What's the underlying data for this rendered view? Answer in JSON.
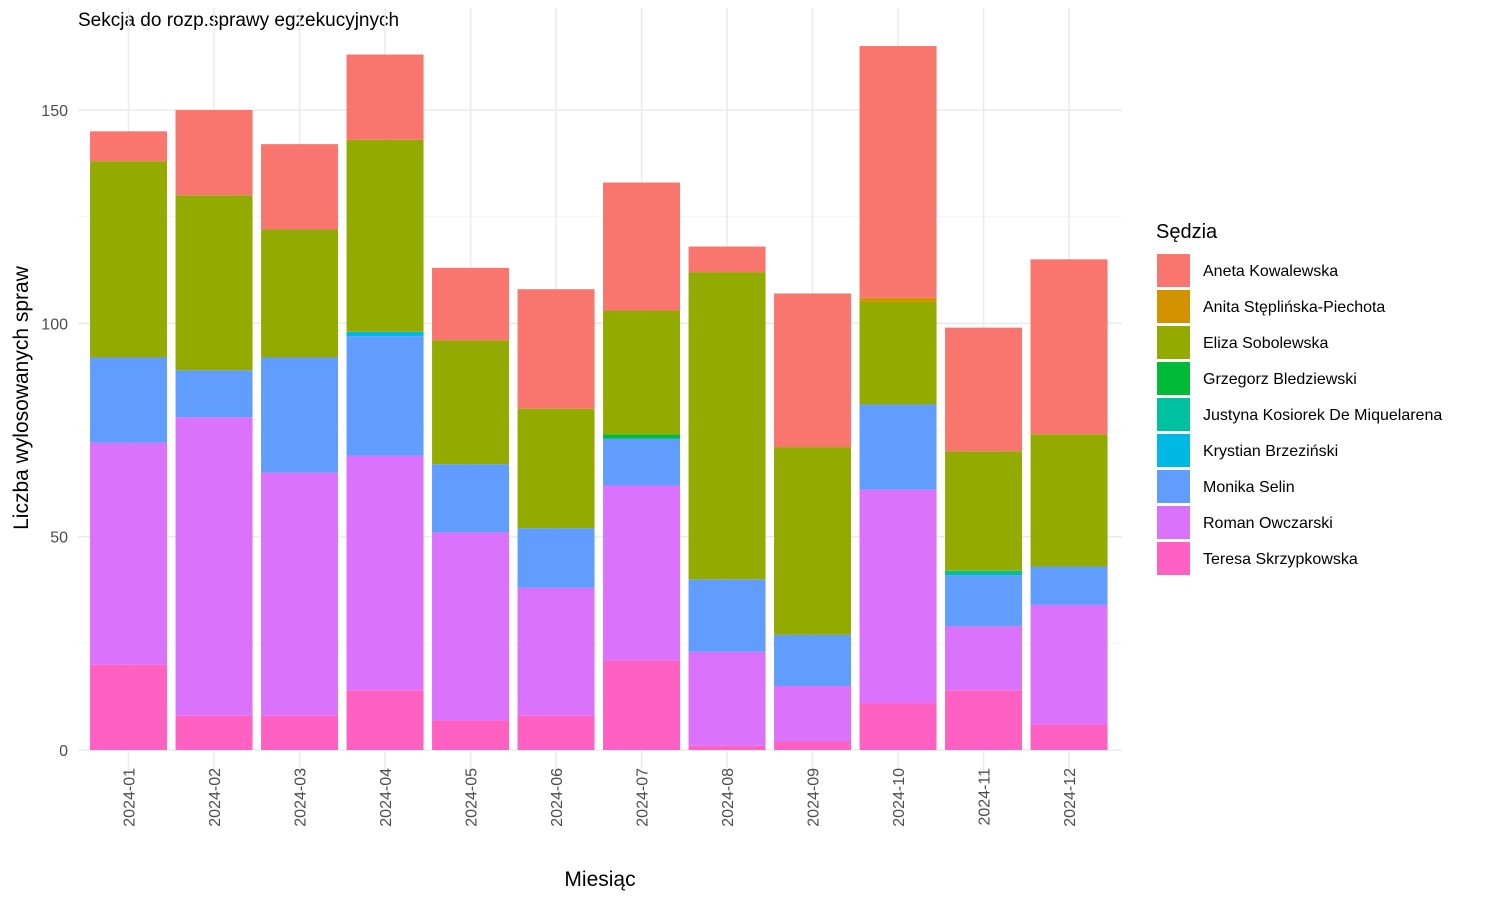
{
  "chart_data": {
    "type": "bar",
    "stacked": true,
    "title": "Sekcja do rozp.sprawy egzekucyjnych",
    "xlabel": "Miesiąc",
    "ylabel": "Liczba wylosowanych spraw",
    "ylim": [
      0,
      170
    ],
    "yticks": [
      0,
      50,
      100,
      150
    ],
    "grid": true,
    "legend_position": "right",
    "legend_title": "Sędzia",
    "categories": [
      "2024-01",
      "2024-02",
      "2024-03",
      "2024-04",
      "2024-05",
      "2024-06",
      "2024-07",
      "2024-08",
      "2024-09",
      "2024-10",
      "2024-11",
      "2024-12"
    ],
    "series": [
      {
        "name": "Teresa Skrzypkowska",
        "color": "#FF61C3",
        "values": [
          20,
          8,
          8,
          14,
          7,
          8,
          21,
          1,
          2,
          11,
          14,
          6
        ]
      },
      {
        "name": "Roman Owczarski",
        "color": "#DB72FB",
        "values": [
          52,
          70,
          57,
          55,
          44,
          30,
          41,
          22,
          13,
          50,
          15,
          28
        ]
      },
      {
        "name": "Monika Selin",
        "color": "#619CFF",
        "values": [
          20,
          11,
          27,
          28,
          16,
          14,
          11,
          17,
          12,
          20,
          12,
          9
        ]
      },
      {
        "name": "Krystian Brzeziński",
        "color": "#00B9E3",
        "values": [
          0,
          0,
          0,
          1,
          0,
          0,
          0,
          0,
          0,
          0,
          0,
          0
        ]
      },
      {
        "name": "Justyna Kosiorek De Miquelarena",
        "color": "#00C19F",
        "values": [
          0,
          0,
          0,
          0,
          0,
          0,
          0,
          0,
          0,
          0,
          1,
          0
        ]
      },
      {
        "name": "Grzegorz Bledziewski",
        "color": "#00BA38",
        "values": [
          0,
          0,
          0,
          0,
          0,
          0,
          1,
          0,
          0,
          0,
          0,
          0
        ]
      },
      {
        "name": "Eliza Sobolewska",
        "color": "#93AA00",
        "values": [
          46,
          41,
          30,
          45,
          29,
          28,
          29,
          72,
          44,
          24,
          28,
          31
        ]
      },
      {
        "name": "Anita Stęplińska-Piechota",
        "color": "#D39200",
        "values": [
          0,
          0,
          0,
          0,
          0,
          0,
          0,
          0,
          0,
          1,
          0,
          0
        ]
      },
      {
        "name": "Aneta Kowalewska",
        "color": "#F8766D",
        "values": [
          7,
          20,
          20,
          20,
          17,
          28,
          30,
          6,
          36,
          59,
          29,
          41
        ]
      }
    ],
    "legend_order": [
      "Aneta Kowalewska",
      "Anita Stęplińska-Piechota",
      "Eliza Sobolewska",
      "Grzegorz Bledziewski",
      "Justyna Kosiorek De Miquelarena",
      "Krystian Brzeziński",
      "Monika Selin",
      "Roman Owczarski",
      "Teresa Skrzypkowska"
    ]
  }
}
